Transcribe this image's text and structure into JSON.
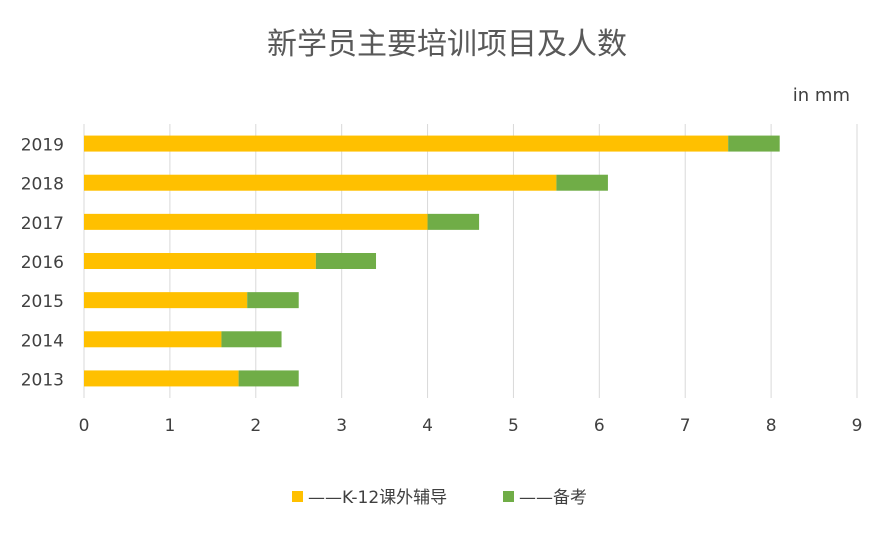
{
  "chart_data": {
    "type": "bar",
    "orientation": "horizontal",
    "stacked": true,
    "title": "新学员主要培训项目及人数",
    "unit": "in mm",
    "categories": [
      "2019",
      "2018",
      "2017",
      "2016",
      "2015",
      "2014",
      "2013"
    ],
    "series": [
      {
        "name": "——K-12课外辅导",
        "color": "#FFC000",
        "values": [
          7.5,
          5.5,
          4.0,
          2.7,
          1.9,
          1.6,
          1.8
        ]
      },
      {
        "name": "——备考",
        "color": "#70AD47",
        "values": [
          0.6,
          0.6,
          0.6,
          0.7,
          0.6,
          0.7,
          0.7
        ]
      }
    ],
    "xlim": [
      0,
      9
    ],
    "xticks": [
      "0",
      "1",
      "2",
      "3",
      "4",
      "5",
      "6",
      "7",
      "8",
      "9"
    ],
    "grid": true,
    "legend_position": "bottom"
  }
}
